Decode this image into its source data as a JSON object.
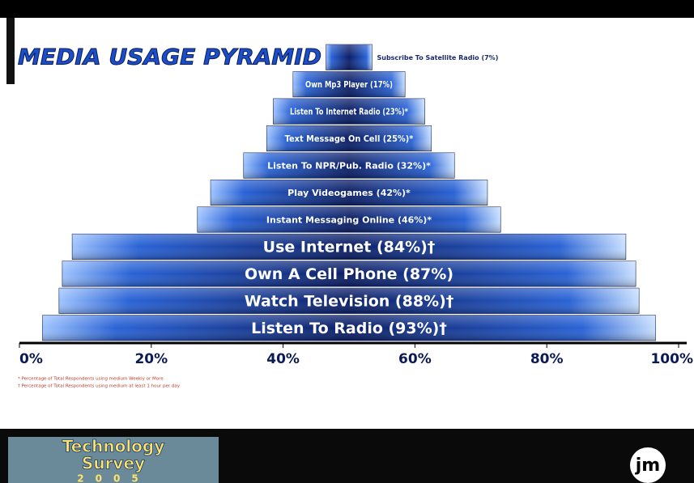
{
  "chart_data": {
    "type": "pyramid",
    "title": "MEDIA USAGE PYRAMID",
    "categories": [
      "Subscribe To Satellite Radio (7%)",
      "Own Mp3 Player (17%)",
      "Listen To Internet Radio (23%)*",
      "Text Message On Cell (25%)*",
      "Listen To NPR/Pub. Radio (32%)*",
      "Play Videogames (42%)*",
      "Instant Messaging Online (46%)*",
      "Use Internet (84%)†",
      "Own A Cell Phone (87%)",
      "Watch Television (88%)†",
      "Listen To Radio (93%)†"
    ],
    "values": [
      7,
      17,
      23,
      25,
      32,
      42,
      46,
      84,
      87,
      88,
      93
    ],
    "color": "#1f4fb8",
    "xlim": [
      0,
      100
    ],
    "xticks": [
      {
        "value": 0,
        "label": "0%"
      },
      {
        "value": 20,
        "label": "20%"
      },
      {
        "value": 40,
        "label": "40%"
      },
      {
        "value": 60,
        "label": "60%"
      },
      {
        "value": 80,
        "label": "80%"
      },
      {
        "value": 100,
        "label": "100%"
      }
    ],
    "grid": false,
    "footnotes": [
      "* Percentage of Total Respondents using medium Weekly or More",
      "† Percentage of Total Respondents using medium at least 1 hour per day"
    ]
  },
  "banner": {
    "line1": "Technology",
    "line2": "Survey",
    "line3": "2005",
    "logo": "jm"
  }
}
